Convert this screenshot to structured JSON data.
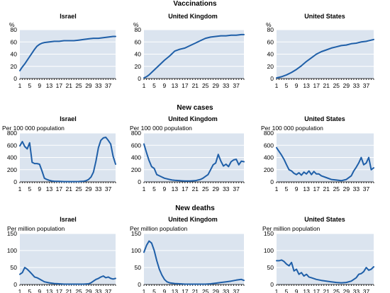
{
  "colors": {
    "series": "#1f5fa8",
    "plot_bg": "#dbe4ef"
  },
  "sections": [
    {
      "title": "Vaccinations"
    },
    {
      "title": "New cases"
    },
    {
      "title": "New deaths"
    }
  ],
  "chart_data": [
    {
      "type": "line",
      "section": 0,
      "title": "Israel",
      "ylabel": "%",
      "ylim": [
        0,
        80
      ],
      "yticks": [
        0,
        20,
        40,
        60,
        80
      ],
      "xlim": [
        1,
        40
      ],
      "xticks": [
        1,
        5,
        9,
        13,
        17,
        21,
        25,
        29,
        33,
        37
      ],
      "series": [
        {
          "x": [
            1,
            2,
            3,
            4,
            5,
            6,
            7,
            8,
            9,
            10,
            11,
            13,
            15,
            17,
            19,
            21,
            23,
            25,
            27,
            29,
            31,
            33,
            35,
            37,
            39,
            40
          ],
          "values": [
            13,
            19,
            24,
            30,
            36,
            42,
            48,
            53,
            56,
            58,
            59,
            60,
            61,
            61,
            62,
            62,
            62,
            63,
            64,
            65,
            66,
            66,
            67,
            68,
            69,
            69
          ]
        }
      ]
    },
    {
      "type": "line",
      "section": 0,
      "title": "United Kingdom",
      "ylabel": "%",
      "ylim": [
        0,
        80
      ],
      "yticks": [
        0,
        20,
        40,
        60,
        80
      ],
      "xlim": [
        1,
        40
      ],
      "xticks": [
        1,
        5,
        9,
        13,
        17,
        21,
        25,
        29,
        33,
        37
      ],
      "series": [
        {
          "x": [
            1,
            2,
            3,
            5,
            7,
            9,
            11,
            13,
            15,
            17,
            19,
            21,
            23,
            25,
            27,
            29,
            31,
            33,
            35,
            37,
            39,
            40
          ],
          "values": [
            1,
            3,
            6,
            14,
            22,
            30,
            37,
            45,
            48,
            50,
            54,
            58,
            62,
            66,
            68,
            69,
            70,
            70,
            71,
            71,
            72,
            72
          ]
        }
      ]
    },
    {
      "type": "line",
      "section": 0,
      "title": "United States",
      "ylabel": "%",
      "ylim": [
        0,
        80
      ],
      "yticks": [
        0,
        20,
        40,
        60,
        80
      ],
      "xlim": [
        1,
        40
      ],
      "xticks": [
        1,
        5,
        9,
        13,
        17,
        21,
        25,
        29,
        33,
        37
      ],
      "series": [
        {
          "x": [
            1,
            3,
            5,
            7,
            9,
            11,
            13,
            15,
            17,
            19,
            21,
            23,
            25,
            27,
            29,
            31,
            33,
            35,
            37,
            39,
            40
          ],
          "values": [
            1,
            3,
            6,
            10,
            15,
            21,
            28,
            34,
            40,
            44,
            47,
            50,
            52,
            54,
            55,
            57,
            58,
            60,
            61,
            63,
            64
          ]
        }
      ]
    },
    {
      "type": "line",
      "section": 1,
      "title": "Israel",
      "ylabel": "Per 100 000 population",
      "ylim": [
        0,
        800
      ],
      "yticks": [
        0,
        200,
        400,
        600,
        800
      ],
      "xlim": [
        1,
        40
      ],
      "xticks": [
        1,
        5,
        9,
        13,
        17,
        21,
        25,
        29,
        33,
        37
      ],
      "series": [
        {
          "x": [
            1,
            2,
            3,
            4,
            5,
            6,
            7,
            8,
            9,
            10,
            11,
            12,
            13,
            14,
            15,
            17,
            19,
            21,
            23,
            25,
            27,
            28,
            29,
            30,
            31,
            32,
            33,
            34,
            35,
            36,
            37,
            38,
            39,
            40
          ],
          "values": [
            590,
            660,
            580,
            540,
            640,
            320,
            300,
            300,
            290,
            180,
            60,
            40,
            25,
            15,
            10,
            8,
            5,
            5,
            5,
            6,
            10,
            20,
            40,
            80,
            160,
            340,
            560,
            680,
            720,
            730,
            680,
            620,
            420,
            290
          ]
        }
      ]
    },
    {
      "type": "line",
      "section": 1,
      "title": "United Kingdom",
      "ylabel": "Per 100 000 population",
      "ylim": [
        0,
        800
      ],
      "yticks": [
        0,
        200,
        400,
        600,
        800
      ],
      "xlim": [
        1,
        40
      ],
      "xticks": [
        1,
        5,
        9,
        13,
        17,
        21,
        25,
        29,
        33,
        37
      ],
      "series": [
        {
          "x": [
            1,
            2,
            3,
            4,
            5,
            6,
            7,
            8,
            9,
            10,
            11,
            12,
            13,
            15,
            17,
            19,
            21,
            23,
            24,
            25,
            26,
            27,
            28,
            29,
            30,
            31,
            32,
            33,
            34,
            35,
            36,
            37,
            38,
            39,
            40
          ],
          "values": [
            620,
            480,
            350,
            250,
            220,
            120,
            100,
            80,
            60,
            50,
            40,
            30,
            25,
            20,
            15,
            15,
            20,
            40,
            60,
            90,
            120,
            200,
            280,
            310,
            450,
            340,
            260,
            290,
            250,
            330,
            360,
            370,
            280,
            340,
            330
          ]
        }
      ]
    },
    {
      "type": "line",
      "section": 1,
      "title": "United States",
      "ylabel": "Per 100 000 population",
      "ylim": [
        0,
        800
      ],
      "yticks": [
        0,
        200,
        400,
        600,
        800
      ],
      "xlim": [
        1,
        40
      ],
      "xticks": [
        1,
        5,
        9,
        13,
        17,
        21,
        25,
        29,
        33,
        37
      ],
      "series": [
        {
          "x": [
            1,
            2,
            3,
            4,
            5,
            6,
            7,
            8,
            9,
            10,
            11,
            12,
            13,
            14,
            15,
            16,
            17,
            18,
            19,
            21,
            23,
            25,
            27,
            29,
            31,
            32,
            33,
            34,
            35,
            36,
            37,
            38,
            39,
            40
          ],
          "values": [
            560,
            500,
            440,
            370,
            280,
            200,
            180,
            140,
            120,
            150,
            110,
            160,
            130,
            180,
            120,
            170,
            130,
            130,
            100,
            70,
            40,
            30,
            20,
            40,
            100,
            180,
            240,
            310,
            400,
            280,
            310,
            400,
            200,
            230
          ]
        }
      ]
    },
    {
      "type": "line",
      "section": 2,
      "title": "Israel",
      "ylabel": "Per million population",
      "ylim": [
        0,
        150
      ],
      "yticks": [
        0,
        50,
        100,
        150
      ],
      "xlim": [
        1,
        40
      ],
      "xticks": [
        1,
        5,
        9,
        13,
        17,
        21,
        25,
        29,
        33,
        37
      ],
      "series": [
        {
          "x": [
            1,
            2,
            3,
            4,
            5,
            6,
            7,
            8,
            9,
            10,
            11,
            13,
            15,
            17,
            19,
            21,
            23,
            25,
            27,
            29,
            30,
            31,
            32,
            33,
            34,
            35,
            36,
            37,
            38,
            39,
            40
          ],
          "values": [
            30,
            35,
            50,
            45,
            38,
            30,
            22,
            20,
            16,
            12,
            8,
            5,
            3,
            2,
            1,
            1,
            1,
            1,
            1,
            2,
            5,
            10,
            15,
            18,
            22,
            25,
            20,
            22,
            18,
            16,
            18
          ]
        }
      ]
    },
    {
      "type": "line",
      "section": 2,
      "title": "United Kingdom",
      "ylabel": "Per million population",
      "ylim": [
        0,
        150
      ],
      "yticks": [
        0,
        50,
        100,
        150
      ],
      "xlim": [
        1,
        40
      ],
      "xticks": [
        1,
        5,
        9,
        13,
        17,
        21,
        25,
        29,
        33,
        37
      ],
      "series": [
        {
          "x": [
            1,
            2,
            3,
            4,
            5,
            6,
            7,
            8,
            9,
            10,
            11,
            13,
            15,
            17,
            19,
            21,
            23,
            25,
            27,
            29,
            31,
            33,
            35,
            37,
            39,
            40
          ],
          "values": [
            95,
            115,
            128,
            122,
            100,
            70,
            45,
            28,
            15,
            8,
            5,
            3,
            2,
            1,
            1,
            1,
            1,
            1,
            2,
            4,
            6,
            8,
            10,
            13,
            15,
            12
          ]
        }
      ]
    },
    {
      "type": "line",
      "section": 2,
      "title": "United States",
      "ylabel": "Per million population",
      "ylim": [
        0,
        150
      ],
      "yticks": [
        0,
        50,
        100,
        150
      ],
      "xlim": [
        1,
        40
      ],
      "xticks": [
        1,
        5,
        9,
        13,
        17,
        21,
        25,
        29,
        33,
        37
      ],
      "series": [
        {
          "x": [
            1,
            2,
            3,
            4,
            5,
            6,
            7,
            8,
            9,
            10,
            11,
            12,
            13,
            14,
            15,
            17,
            19,
            21,
            23,
            25,
            27,
            29,
            31,
            33,
            34,
            35,
            36,
            37,
            38,
            39,
            40
          ],
          "values": [
            70,
            70,
            72,
            68,
            60,
            55,
            65,
            40,
            45,
            30,
            35,
            25,
            30,
            22,
            20,
            15,
            12,
            10,
            8,
            6,
            5,
            6,
            10,
            20,
            30,
            32,
            38,
            50,
            42,
            45,
            52
          ]
        }
      ]
    }
  ]
}
